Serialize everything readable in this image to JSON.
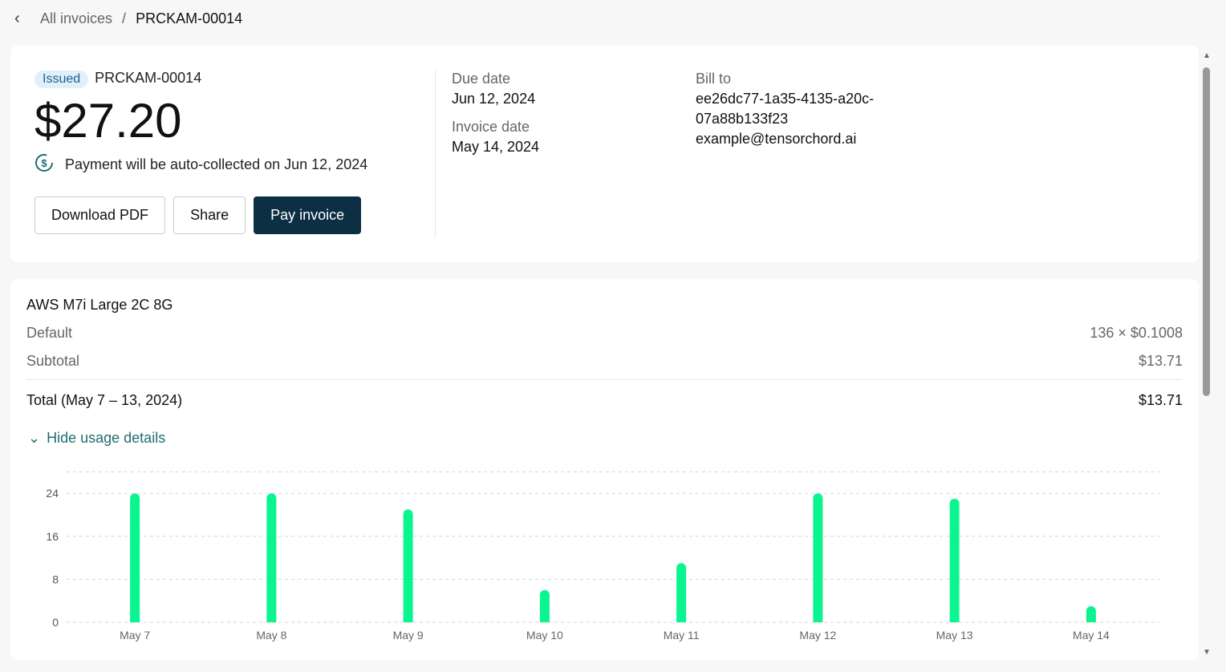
{
  "breadcrumb": {
    "parent": "All invoices",
    "separator": "/",
    "current": "PRCKAM-00014"
  },
  "invoice": {
    "status": "Issued",
    "number": "PRCKAM-00014",
    "amount": "$27.20",
    "auto_collect": "Payment will be auto-collected on Jun 12, 2024",
    "buttons": {
      "download": "Download PDF",
      "share": "Share",
      "pay": "Pay invoice"
    },
    "due_label": "Due date",
    "due": "Jun 12, 2024",
    "date_label": "Invoice date",
    "date": "May 14, 2024",
    "bill_label": "Bill to",
    "bill_id_1": "ee26dc77-1a35-4135-a20c-",
    "bill_id_2": "07a88b133f23",
    "bill_email": "example@tensorchord.ai"
  },
  "line": {
    "product": "AWS M7i Large 2C 8G",
    "plan": "Default",
    "qty_price": "136 × $0.1008",
    "subtotal_label": "Subtotal",
    "subtotal": "$13.71",
    "total_label": "Total (May 7 – 13, 2024)",
    "total": "$13.71",
    "toggle": "Hide usage details"
  },
  "colors": {
    "accent": "#0c2f44",
    "bar": "#0af58f",
    "badge_bg": "#dff0fb"
  },
  "chart_data": {
    "type": "bar",
    "categories": [
      "May 7",
      "May 8",
      "May 9",
      "May 10",
      "May 11",
      "May 12",
      "May 13",
      "May 14"
    ],
    "values": [
      24,
      24,
      21,
      6,
      11,
      24,
      23,
      3
    ],
    "ylim": [
      0,
      28
    ],
    "yticks": [
      "0",
      "8",
      "16",
      "24"
    ],
    "grid": true,
    "title": "",
    "xlabel": "",
    "ylabel": ""
  }
}
